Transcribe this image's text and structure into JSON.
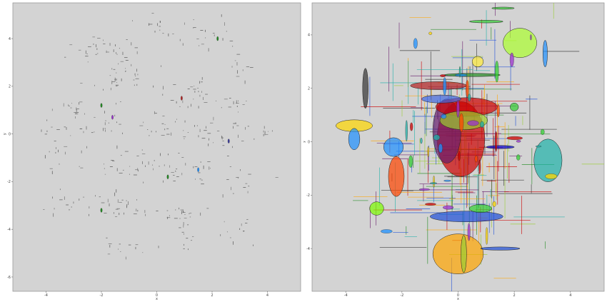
{
  "chart_data": [
    {
      "type": "scatter",
      "title": "",
      "xlabel": "x",
      "ylabel": "y",
      "xlim": [
        -5.2,
        5.2
      ],
      "ylim": [
        -6.6,
        5.5
      ],
      "grid": false,
      "background": "#d3d3d3",
      "x_ticks": [
        "-4",
        "-2",
        "0",
        "2",
        "4"
      ],
      "x_tick_values": [
        -4,
        -2,
        0,
        2,
        4
      ],
      "y_ticks": [
        "4",
        "2",
        "0",
        "-2",
        "-4",
        "-6"
      ],
      "y_tick_values": [
        4,
        2,
        0,
        -2,
        -4,
        -6
      ],
      "clusters": [
        {
          "x": -2.0,
          "y": 3.5,
          "sx": 0.6,
          "sy": 0.3,
          "n": 35
        },
        {
          "x": 0.0,
          "y": 4.5,
          "sx": 0.4,
          "sy": 0.25,
          "n": 14
        },
        {
          "x": 2.0,
          "y": 4.0,
          "sx": 0.6,
          "sy": 0.35,
          "n": 20
        },
        {
          "x": 3.0,
          "y": 2.8,
          "sx": 0.3,
          "sy": 0.3,
          "n": 10
        },
        {
          "x": -3.0,
          "y": 1.0,
          "sx": 0.25,
          "sy": 0.3,
          "n": 14
        },
        {
          "x": -1.3,
          "y": 2.2,
          "sx": 0.5,
          "sy": 0.4,
          "n": 30
        },
        {
          "x": 1.3,
          "y": 1.8,
          "sx": 0.6,
          "sy": 0.4,
          "n": 30
        },
        {
          "x": 2.8,
          "y": 1.2,
          "sx": 0.25,
          "sy": 0.3,
          "n": 12
        },
        {
          "x": -4.0,
          "y": 0.2,
          "sx": 0.3,
          "sy": 0.3,
          "n": 8
        },
        {
          "x": -2.2,
          "y": 0.2,
          "sx": 0.6,
          "sy": 0.3,
          "n": 25
        },
        {
          "x": 0.3,
          "y": 0.2,
          "sx": 0.7,
          "sy": 0.3,
          "n": 28
        },
        {
          "x": 2.3,
          "y": 0.0,
          "sx": 0.6,
          "sy": 0.3,
          "n": 25
        },
        {
          "x": 4.0,
          "y": 0.0,
          "sx": 0.25,
          "sy": 0.25,
          "n": 8
        },
        {
          "x": -3.3,
          "y": -1.0,
          "sx": 0.4,
          "sy": 0.3,
          "n": 14
        },
        {
          "x": -1.0,
          "y": -1.2,
          "sx": 0.6,
          "sy": 0.35,
          "n": 28
        },
        {
          "x": 1.0,
          "y": -1.5,
          "sx": 0.6,
          "sy": 0.35,
          "n": 28
        },
        {
          "x": 3.2,
          "y": -2.0,
          "sx": 0.4,
          "sy": 0.3,
          "n": 14
        },
        {
          "x": -3.0,
          "y": -2.8,
          "sx": 0.5,
          "sy": 0.3,
          "n": 16
        },
        {
          "x": -1.2,
          "y": -3.0,
          "sx": 0.6,
          "sy": 0.35,
          "n": 25
        },
        {
          "x": 0.8,
          "y": -3.4,
          "sx": 0.6,
          "sy": 0.3,
          "n": 25
        },
        {
          "x": 3.0,
          "y": -4.0,
          "sx": 0.4,
          "sy": 0.3,
          "n": 12
        },
        {
          "x": -1.0,
          "y": -4.8,
          "sx": 0.4,
          "sy": 0.3,
          "n": 12
        },
        {
          "x": 1.0,
          "y": -4.5,
          "sx": 0.35,
          "sy": 0.3,
          "n": 10
        }
      ],
      "highlight_points": [
        {
          "x": 0.9,
          "y": 1.5,
          "color": "#b22222"
        },
        {
          "x": -1.6,
          "y": 0.7,
          "color": "#9932cc"
        },
        {
          "x": -2.0,
          "y": 1.2,
          "color": "#228b22"
        },
        {
          "x": 1.5,
          "y": -1.5,
          "color": "#1e90ff"
        },
        {
          "x": -2.0,
          "y": -3.2,
          "color": "#228b22"
        },
        {
          "x": 2.2,
          "y": 4.0,
          "color": "#228b22"
        },
        {
          "x": 2.6,
          "y": -0.3,
          "color": "#3a3a9a"
        },
        {
          "x": 0.4,
          "y": -1.8,
          "color": "#228b22"
        }
      ]
    },
    {
      "type": "scatter",
      "title": "",
      "xlabel": "x",
      "ylabel": "y",
      "xlim": [
        -5.2,
        5.2
      ],
      "ylim": [
        -5.6,
        5.2
      ],
      "grid": false,
      "background": "#d3d3d3",
      "x_ticks": [
        "-4",
        "-2",
        "0",
        "2",
        "4"
      ],
      "x_tick_values": [
        -4,
        -2,
        0,
        2,
        4
      ],
      "y_ticks": [
        "4",
        "2",
        "0",
        "-2",
        "-4"
      ],
      "y_tick_values": [
        4,
        2,
        0,
        -2,
        -4
      ],
      "ellipses": [
        {
          "x": 0.1,
          "y": 0.1,
          "rx": 0.85,
          "ry": 1.4,
          "color": "#cc0000"
        },
        {
          "x": -0.4,
          "y": 0.4,
          "rx": 0.5,
          "ry": 1.2,
          "color": "#6a1e6e"
        },
        {
          "x": 0.3,
          "y": 1.3,
          "rx": 1.1,
          "ry": 0.35,
          "color": "#cc0000"
        },
        {
          "x": 0.2,
          "y": 0.8,
          "rx": 0.85,
          "ry": 0.35,
          "color": "#9acd32"
        },
        {
          "x": -0.7,
          "y": 2.1,
          "rx": 1.0,
          "ry": 0.15,
          "color": "#b22222"
        },
        {
          "x": 2.2,
          "y": 3.7,
          "rx": 0.6,
          "ry": 0.55,
          "color": "#adff2f"
        },
        {
          "x": 3.1,
          "y": 3.3,
          "rx": 0.08,
          "ry": 0.5,
          "color": "#1e90ff"
        },
        {
          "x": 3.2,
          "y": -0.7,
          "rx": 0.5,
          "ry": 0.8,
          "color": "#20b2aa"
        },
        {
          "x": 0.0,
          "y": -4.2,
          "rx": 0.9,
          "ry": 0.75,
          "color": "#ffa500"
        },
        {
          "x": 0.2,
          "y": -4.2,
          "rx": 0.1,
          "ry": 0.7,
          "color": "#9acd32"
        },
        {
          "x": -3.3,
          "y": 2.0,
          "rx": 0.1,
          "ry": 0.75,
          "color": "#333333"
        },
        {
          "x": -3.7,
          "y": 0.6,
          "rx": 0.65,
          "ry": 0.22,
          "color": "#ffd700"
        },
        {
          "x": -3.7,
          "y": 0.1,
          "rx": 0.2,
          "ry": 0.4,
          "color": "#1e90ff"
        },
        {
          "x": -2.2,
          "y": -1.3,
          "rx": 0.28,
          "ry": 0.75,
          "color": "#ff4500"
        },
        {
          "x": -2.3,
          "y": -0.2,
          "rx": 0.35,
          "ry": 0.35,
          "color": "#1e90ff"
        },
        {
          "x": 0.3,
          "y": -2.8,
          "rx": 1.3,
          "ry": 0.2,
          "color": "#1e4fd8"
        },
        {
          "x": 0.8,
          "y": -2.5,
          "rx": 0.4,
          "ry": 0.15,
          "color": "#32cd32"
        },
        {
          "x": -2.9,
          "y": -2.5,
          "rx": 0.25,
          "ry": 0.25,
          "color": "#7cfc00"
        },
        {
          "x": 0.7,
          "y": 3.0,
          "rx": 0.2,
          "ry": 0.2,
          "color": "#ffeb3b"
        },
        {
          "x": 2.0,
          "y": 1.3,
          "rx": 0.15,
          "ry": 0.15,
          "color": "#32cd32"
        },
        {
          "x": -0.6,
          "y": 1.6,
          "rx": 0.7,
          "ry": 0.15,
          "color": "#4169e1"
        },
        {
          "x": 1.5,
          "y": -0.2,
          "rx": 0.5,
          "ry": 0.06,
          "color": "#0000cd"
        },
        {
          "x": 0.5,
          "y": 2.5,
          "rx": 1.0,
          "ry": 0.06,
          "color": "#228b22"
        },
        {
          "x": 1.6,
          "y": 5.0,
          "rx": 0.4,
          "ry": 0.04,
          "color": "#32cd32"
        },
        {
          "x": 1.0,
          "y": 4.5,
          "rx": 0.6,
          "ry": 0.05,
          "color": "#32cd32"
        },
        {
          "x": 1.5,
          "y": -4.0,
          "rx": 0.7,
          "ry": 0.06,
          "color": "#1e4fd8"
        }
      ]
    }
  ]
}
